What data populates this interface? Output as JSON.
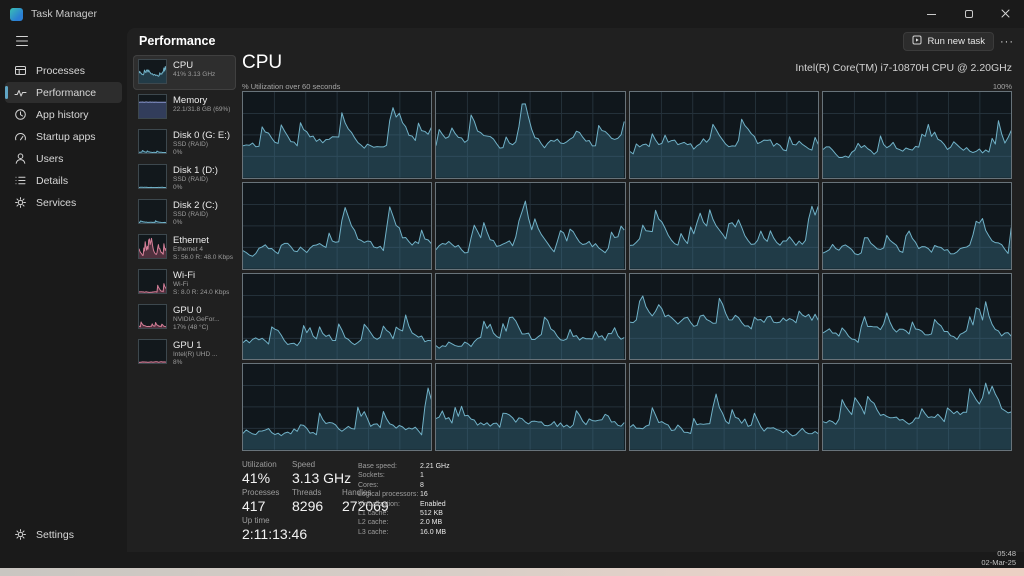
{
  "window": {
    "title": "Task Manager"
  },
  "taskbar": {
    "time": "05:48",
    "date": "02-Mar-25"
  },
  "sidebar": {
    "items": [
      {
        "label": "Processes",
        "icon": "processes-icon"
      },
      {
        "label": "Performance",
        "icon": "performance-icon",
        "selected": true
      },
      {
        "label": "App history",
        "icon": "app-history-icon"
      },
      {
        "label": "Startup apps",
        "icon": "startup-apps-icon"
      },
      {
        "label": "Users",
        "icon": "users-icon"
      },
      {
        "label": "Details",
        "icon": "details-icon"
      },
      {
        "label": "Services",
        "icon": "services-icon"
      }
    ],
    "settings": {
      "label": "Settings",
      "icon": "settings-icon"
    }
  },
  "header": {
    "title": "Performance",
    "run_new_task": "Run new task",
    "more": "···"
  },
  "perf_list": [
    {
      "id": "cpu",
      "title": "CPU",
      "lines": [
        "41% 3.13 GHz"
      ],
      "kind": "cpu",
      "selected": true
    },
    {
      "id": "memory",
      "title": "Memory",
      "lines": [
        "22.1/31.8 GB (69%)"
      ],
      "kind": "memory"
    },
    {
      "id": "disk-0",
      "title": "Disk 0 (G: E:)",
      "lines": [
        "SSD (RAID)",
        "0%"
      ],
      "kind": "disk"
    },
    {
      "id": "disk-1",
      "title": "Disk 1 (D:)",
      "lines": [
        "SSD (RAID)",
        "0%"
      ],
      "kind": "disk"
    },
    {
      "id": "disk-2",
      "title": "Disk 2 (C:)",
      "lines": [
        "SSD (RAID)",
        "0%"
      ],
      "kind": "disk"
    },
    {
      "id": "ethernet",
      "title": "Ethernet",
      "lines": [
        "Ethernet 4",
        "S: 56.0 R: 48.0 Kbps"
      ],
      "kind": "net"
    },
    {
      "id": "wifi",
      "title": "Wi-Fi",
      "lines": [
        "Wi-Fi",
        "S: 8.0 R: 24.0 Kbps"
      ],
      "kind": "net-low"
    },
    {
      "id": "gpu-0",
      "title": "GPU 0",
      "lines": [
        "NVIDIA GeFor...",
        "17% (48 °C)"
      ],
      "kind": "gpu"
    },
    {
      "id": "gpu-1",
      "title": "GPU 1",
      "lines": [
        "Intel(R) UHD ...",
        "8%"
      ],
      "kind": "gpu-flat"
    }
  ],
  "cpu_panel": {
    "title": "CPU",
    "chip": "Intel(R) Core(TM) i7-10870H CPU @ 2.20GHz",
    "graph_label": "% Utilization over 60 seconds",
    "graph_max": "100%",
    "stats_rows": [
      [
        {
          "label": "Utilization",
          "value": "41%"
        },
        {
          "label": "Speed",
          "value": "3.13 GHz"
        }
      ],
      [
        {
          "label": "Processes",
          "value": "417"
        },
        {
          "label": "Threads",
          "value": "8296"
        },
        {
          "label": "Handles",
          "value": "272069"
        }
      ],
      [
        {
          "label": "Up time",
          "value": "2:11:13:46"
        }
      ]
    ],
    "stats_right": [
      {
        "label": "Base speed:",
        "value": "2.21 GHz"
      },
      {
        "label": "Sockets:",
        "value": "1"
      },
      {
        "label": "Cores:",
        "value": "8"
      },
      {
        "label": "Logical processors:",
        "value": "16"
      },
      {
        "label": "Virtualization:",
        "value": "Enabled"
      },
      {
        "label": "L1 cache:",
        "value": "512 KB"
      },
      {
        "label": "L2 cache:",
        "value": "2.0 MB"
      },
      {
        "label": "L3 cache:",
        "value": "16.0 MB"
      }
    ]
  },
  "colors": {
    "accent": "#60a5c4",
    "graph_line": "#71b2c8",
    "graph_fill": "rgba(60,118,142,0.38)",
    "graph_grid": "#24313a",
    "graph_bg": "#10171c",
    "graph_border": "#68737a",
    "net_line": "#d57f98",
    "net_fill": "rgba(176,84,116,0.40)",
    "memory_line": "#8a97cf",
    "memory_fill": "rgba(92,106,168,0.45)"
  },
  "graph_config": {
    "cells": 16,
    "points": 60,
    "mini_points": 40
  },
  "icons": [
    "task-manager-logo-icon",
    "minimize-icon",
    "maximize-icon",
    "close-icon",
    "hamburger-icon",
    "processes-icon",
    "performance-icon",
    "app-history-icon",
    "startup-apps-icon",
    "users-icon",
    "details-icon",
    "services-icon",
    "settings-icon",
    "run-new-task-icon",
    "more-options-icon"
  ]
}
